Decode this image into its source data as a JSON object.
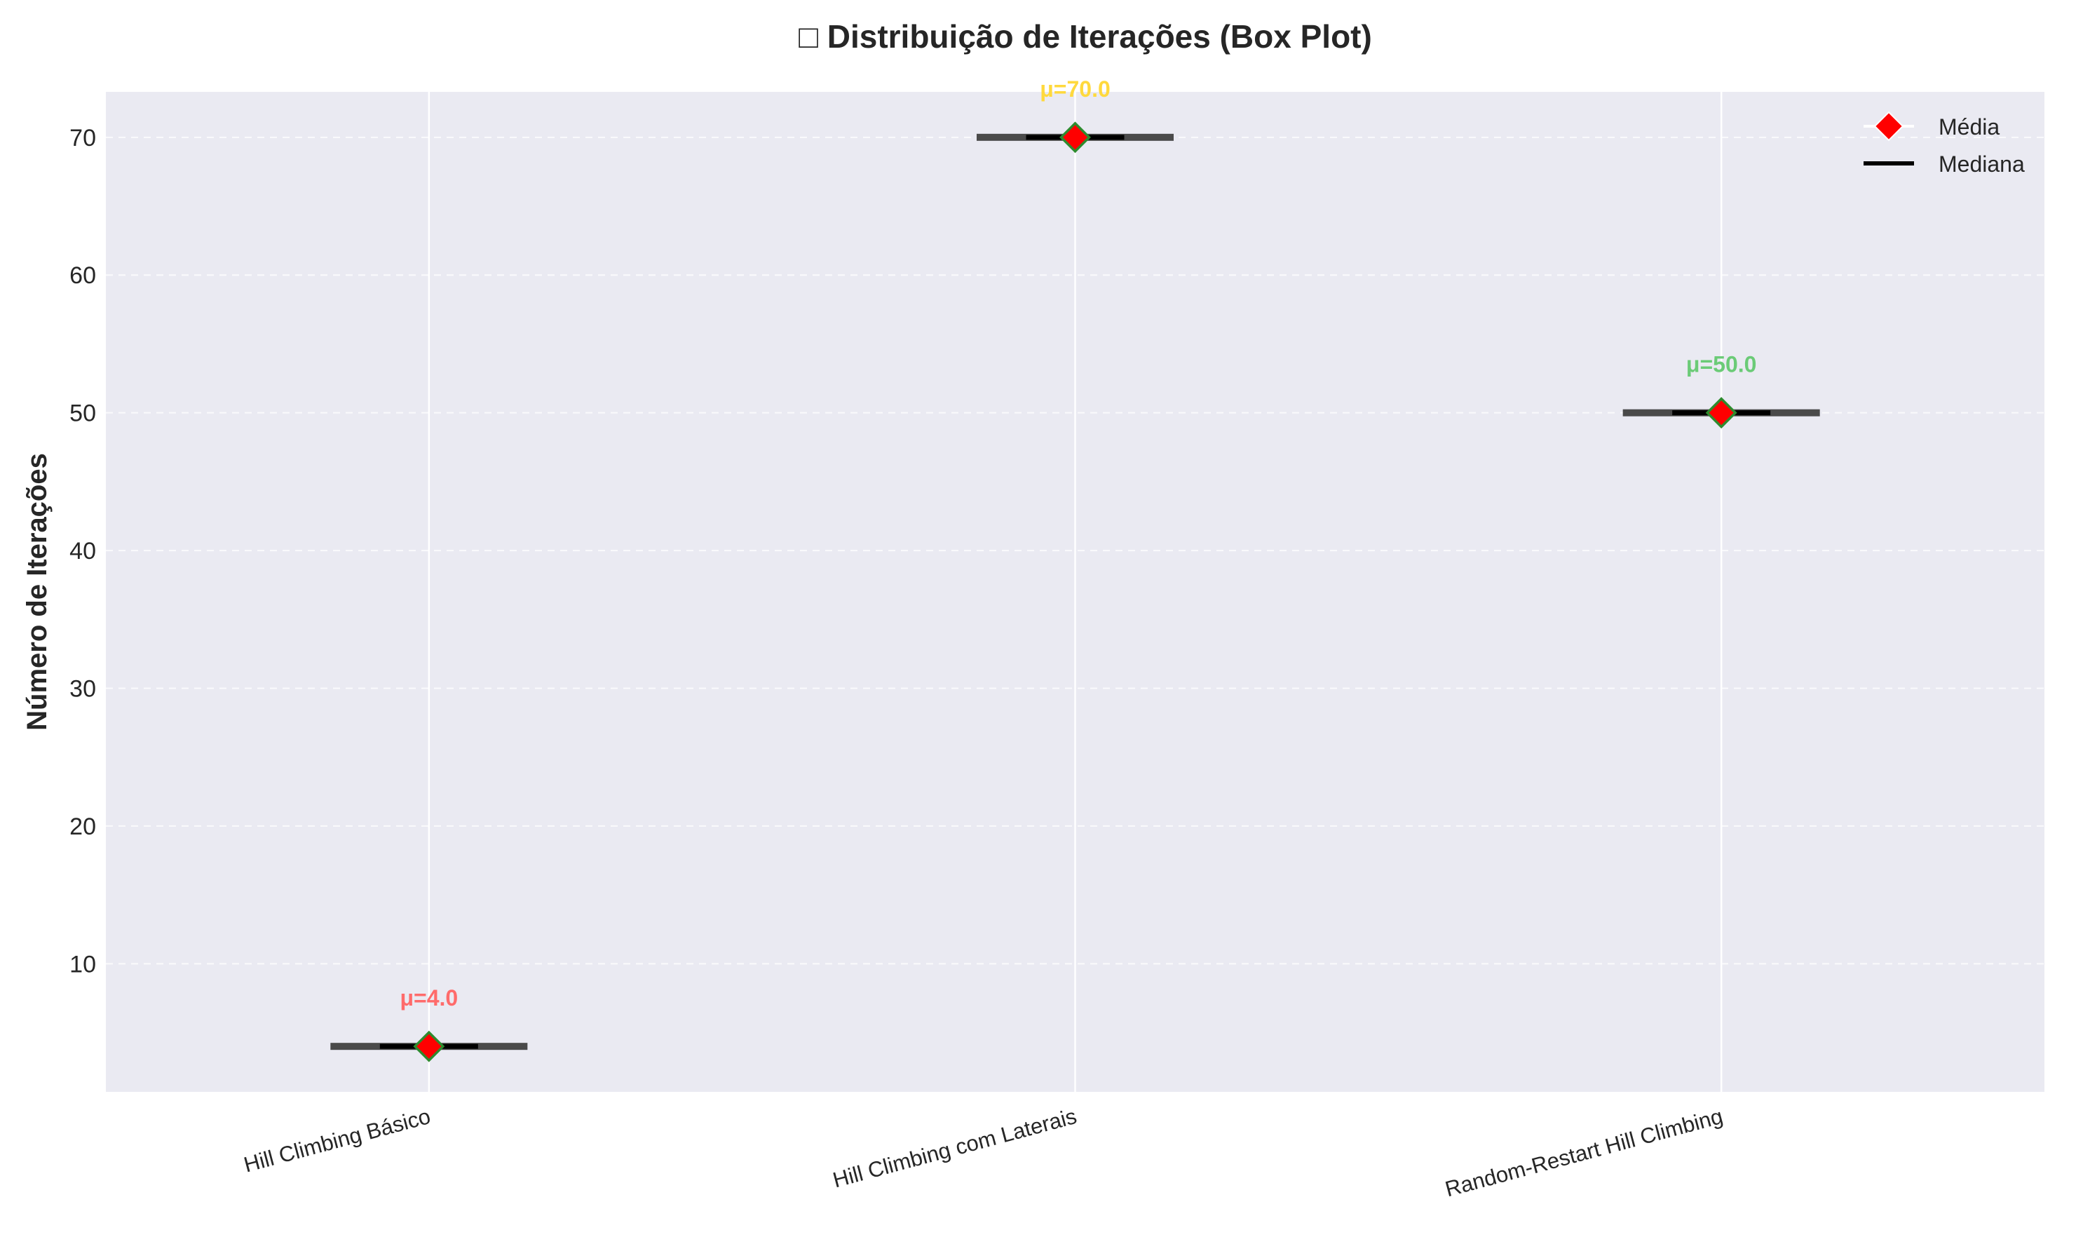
{
  "chart_data": {
    "type": "box",
    "title": "□ Distribuição de Iterações (Box Plot)",
    "xlabel": "",
    "ylabel": "Número de Iterações",
    "categories": [
      "Hill Climbing Básico",
      "Hill Climbing com Laterais",
      "Random-Restart Hill Climbing"
    ],
    "ylim": [
      0.7,
      73.3
    ],
    "yticks": [
      10,
      20,
      30,
      40,
      50,
      60,
      70
    ],
    "grid": true,
    "legend_position": "top-right",
    "series": [
      {
        "name": "Média",
        "values": [
          4.0,
          70.0,
          50.0
        ]
      },
      {
        "name": "Mediana",
        "values": [
          4.0,
          70.0,
          50.0
        ]
      }
    ],
    "boxes": [
      {
        "min": 4,
        "q1": 4,
        "median": 4,
        "q3": 4,
        "max": 4
      },
      {
        "min": 70,
        "q1": 70,
        "median": 70,
        "q3": 70,
        "max": 70
      },
      {
        "min": 50,
        "q1": 50,
        "median": 50,
        "q3": 50,
        "max": 50
      }
    ],
    "annotations": [
      "μ=4.0",
      "μ=70.0",
      "μ=50.0"
    ],
    "annotation_colors": [
      "#ff6b6b",
      "#ffd93d",
      "#6bcb77"
    ],
    "colors": {
      "plot_background": "#eaeaf2",
      "grid": "#ffffff",
      "box_line": "#4a4a4a",
      "median": "#000000",
      "mean_marker_fill": "#ff0000",
      "mean_marker_edge": "#2e8b2e"
    },
    "legend": [
      {
        "label": "Média",
        "marker": "diamond",
        "color": "#ff0000"
      },
      {
        "label": "Mediana",
        "marker": "line",
        "color": "#000000"
      }
    ]
  }
}
